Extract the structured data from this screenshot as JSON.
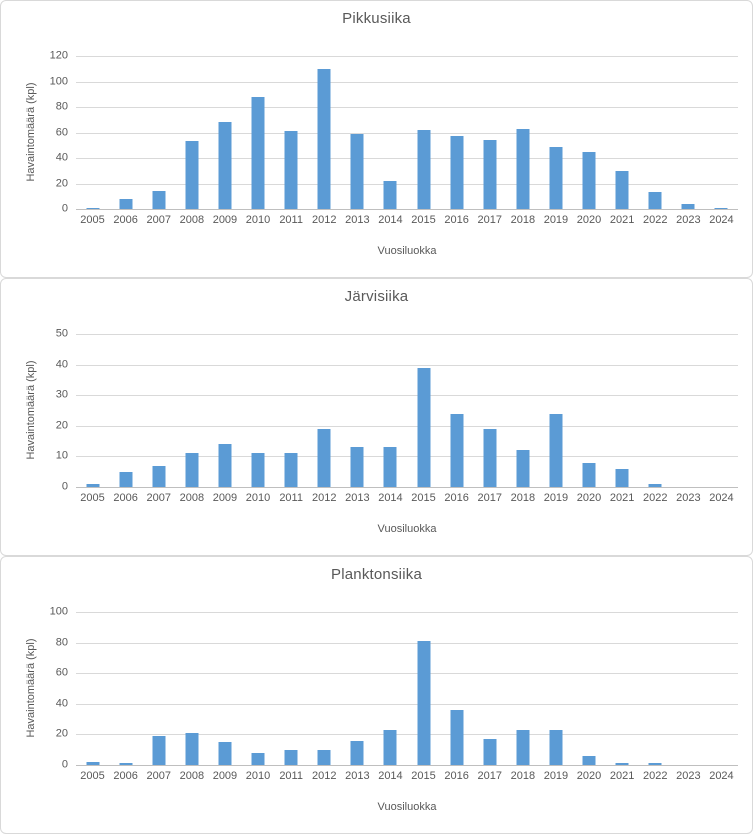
{
  "styles": {
    "bar_color": "#5b9bd5",
    "gridline_color": "#d9d9d9",
    "axis_line_color": "#bfbfbf",
    "text_color": "#595959",
    "panel_border_color": "#d9d9d9",
    "background": "#ffffff"
  },
  "chart_data": [
    {
      "type": "bar",
      "title": "Pikkusiika",
      "ylabel": "Havaintomäärä (kpl)",
      "xlabel": "Vuosiluokka",
      "categories": [
        "2005",
        "2006",
        "2007",
        "2008",
        "2009",
        "2010",
        "2011",
        "2012",
        "2013",
        "2014",
        "2015",
        "2016",
        "2017",
        "2018",
        "2019",
        "2020",
        "2021",
        "2022",
        "2023",
        "2024"
      ],
      "values": [
        1,
        8,
        14,
        53,
        68,
        88,
        61,
        110,
        59,
        22,
        62,
        57,
        54,
        63,
        49,
        45,
        30,
        13,
        4,
        1
      ],
      "ylim": [
        0,
        120
      ],
      "yticks": [
        0,
        20,
        40,
        60,
        80,
        100,
        120
      ],
      "grid": true,
      "legend": "none",
      "bar_color": "#5b9bd5"
    },
    {
      "type": "bar",
      "title": "Järvisiika",
      "ylabel": "Havaintomäärä (kpl)",
      "xlabel": "Vuosiluokka",
      "categories": [
        "2005",
        "2006",
        "2007",
        "2008",
        "2009",
        "2010",
        "2011",
        "2012",
        "2013",
        "2014",
        "2015",
        "2016",
        "2017",
        "2018",
        "2019",
        "2020",
        "2021",
        "2022",
        "2023",
        "2024"
      ],
      "values": [
        1,
        5,
        7,
        11,
        14,
        11,
        11,
        19,
        13,
        13,
        39,
        24,
        19,
        12,
        24,
        8,
        6,
        1,
        0,
        0
      ],
      "ylim": [
        0,
        50
      ],
      "yticks": [
        0,
        10,
        20,
        30,
        40,
        50
      ],
      "grid": true,
      "legend": "none",
      "bar_color": "#5b9bd5"
    },
    {
      "type": "bar",
      "title": "Planktonsiika",
      "ylabel": "Havaintomäärä (kpl)",
      "xlabel": "Vuosiluokka",
      "categories": [
        "2005",
        "2006",
        "2007",
        "2008",
        "2009",
        "2010",
        "2011",
        "2012",
        "2013",
        "2014",
        "2015",
        "2016",
        "2017",
        "2018",
        "2019",
        "2020",
        "2021",
        "2022",
        "2023",
        "2024"
      ],
      "values": [
        2,
        1,
        19,
        21,
        15,
        8,
        10,
        10,
        16,
        23,
        81,
        36,
        17,
        23,
        23,
        6,
        1,
        1,
        0,
        0
      ],
      "ylim": [
        0,
        100
      ],
      "yticks": [
        0,
        20,
        40,
        60,
        80,
        100
      ],
      "grid": true,
      "legend": "none",
      "bar_color": "#5b9bd5"
    }
  ]
}
